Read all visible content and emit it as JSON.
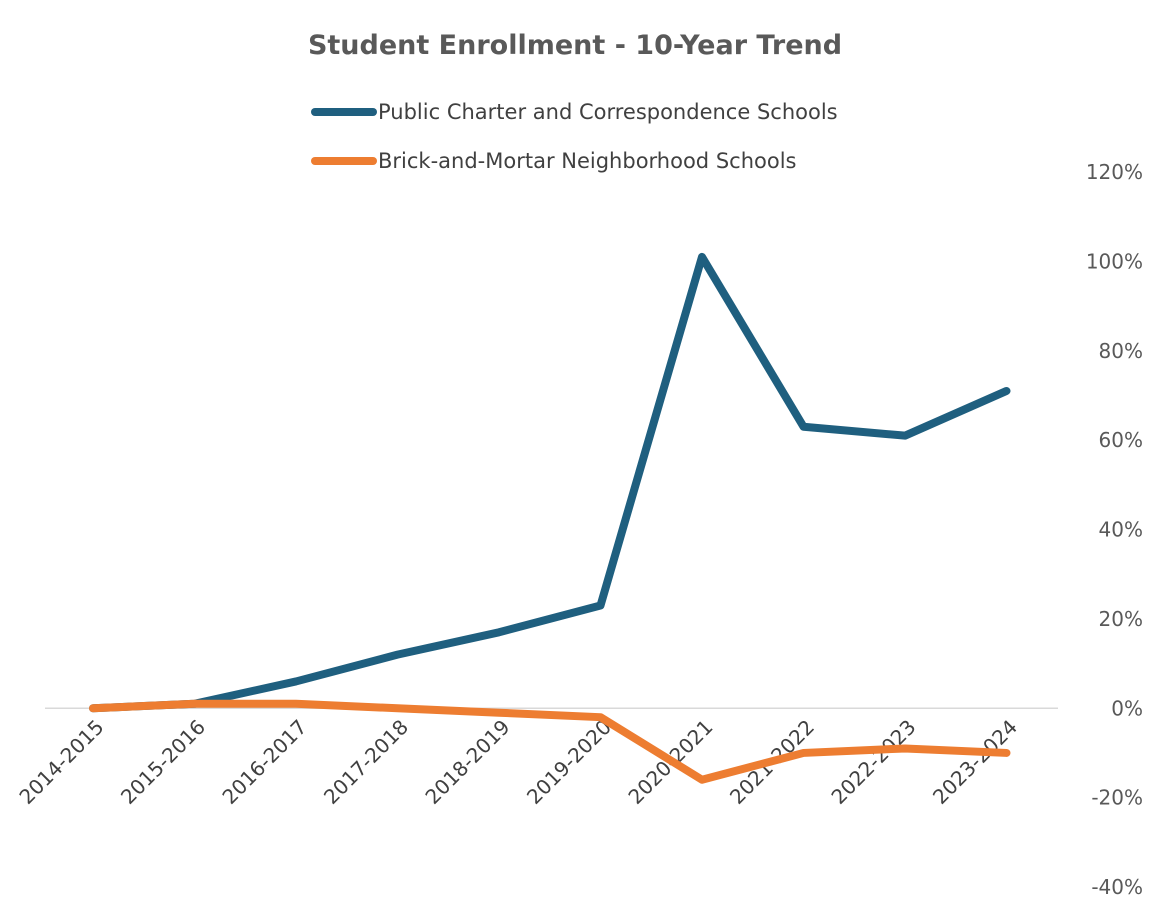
{
  "chart_data": {
    "type": "line",
    "title": "Student Enrollment - 10-Year Trend",
    "xlabel": "",
    "ylabel": "",
    "categories": [
      "2014-2015",
      "2015-2016",
      "2016-2017",
      "2017-2018",
      "2018-2019",
      "2019-2020",
      "2020-2021",
      "2021-2022",
      "2022-2023",
      "2023-2024"
    ],
    "series": [
      {
        "name": "Public Charter and Correspondence Schools",
        "color": "#1f5f7f",
        "values": [
          0,
          1,
          6,
          12,
          17,
          23,
          101,
          63,
          61,
          71
        ]
      },
      {
        "name": "Brick-and-Mortar Neighborhood Schools",
        "color": "#ed7d31",
        "values": [
          0,
          1,
          1,
          0,
          -1,
          -2,
          -16,
          -10,
          -9,
          -10
        ]
      }
    ],
    "yaxis": {
      "position": "right",
      "min": -40,
      "max": 120,
      "ticks": [
        "120%",
        "100%",
        "80%",
        "60%",
        "40%",
        "20%",
        "0%",
        "-20%",
        "-40%"
      ]
    },
    "grid": false,
    "legend": "top-left"
  }
}
